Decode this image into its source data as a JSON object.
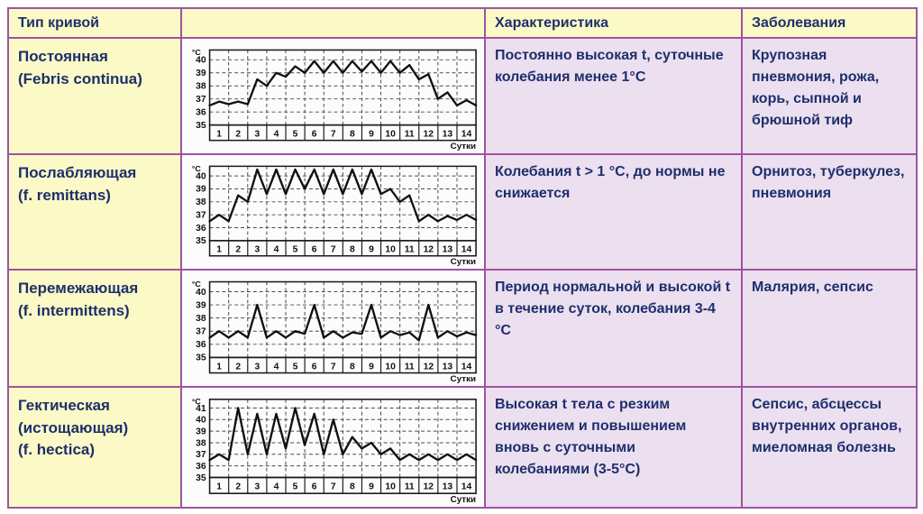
{
  "colors": {
    "border_purple": "#9c55a0",
    "header_bg_yellow": "#fbf9c6",
    "cell_bg_lavender": "#ecdff0",
    "text_navy": "#1d2f6b",
    "chart_bg": "#fcfcfc",
    "chart_ink": "#1a1a1a"
  },
  "table": {
    "headers": [
      {
        "label": "Тип кривой"
      },
      {
        "label": ""
      },
      {
        "label": "Характеристика"
      },
      {
        "label": "Заболевания"
      }
    ],
    "rows": [
      {
        "type": "Постоянная\n(Febris continua)",
        "characteristic": "Постоянно высокая t, суточные колебания менее 1°С",
        "diseases": "Крупозная пневмония, рожа, корь, сыпной и брюшной тиф"
      },
      {
        "type": "Послабляющая\n(f. remittans)",
        "characteristic": "Колебания t > 1 °С, до нормы не снижается",
        "diseases": "Орнитоз, туберкулез, пневмония"
      },
      {
        "type": "Перемежающая\n(f. intermittens)",
        "characteristic": "Период нормальной и высокой t в течение суток, колебания 3-4 °С",
        "diseases": "Малярия, сепсис"
      },
      {
        "type": "Гектическая\n(истощающая)\n(f. hectica)",
        "characteristic": "Высокая t тела с резким снижением и повышением вновь с суточными колебаниями (3-5°С)",
        "diseases": "Сепсис, абсцессы внутренних органов, миеломная болезнь"
      }
    ]
  },
  "chart_data": [
    {
      "type": "line",
      "title": "Постоянная (Febris continua)",
      "xlabel": "Сутки",
      "ylabel": "°C",
      "categories": [
        "1",
        "2",
        "3",
        "4",
        "5",
        "6",
        "7",
        "8",
        "9",
        "10",
        "11",
        "12",
        "13",
        "14"
      ],
      "x_step_days": 0.5,
      "yticks": [
        40,
        39,
        38,
        37,
        36,
        35
      ],
      "ylim": [
        35,
        40.75
      ],
      "grid": "dashed",
      "values": [
        36.5,
        36.8,
        36.6,
        36.8,
        36.6,
        38.5,
        38.0,
        39.0,
        38.7,
        39.5,
        39.0,
        39.9,
        39.0,
        39.9,
        39.0,
        39.9,
        39.1,
        39.9,
        39.0,
        39.9,
        39.0,
        39.6,
        38.5,
        38.9,
        37.0,
        37.5,
        36.5,
        36.9,
        36.5
      ]
    },
    {
      "type": "line",
      "title": "Послабляющая (f. remittans)",
      "xlabel": "Сутки",
      "ylabel": "°C",
      "categories": [
        "1",
        "2",
        "3",
        "4",
        "5",
        "6",
        "7",
        "8",
        "9",
        "10",
        "11",
        "12",
        "13",
        "14"
      ],
      "x_step_days": 0.5,
      "yticks": [
        40,
        39,
        38,
        37,
        36,
        35
      ],
      "ylim": [
        35,
        40.75
      ],
      "grid": "dashed",
      "values": [
        36.5,
        37.0,
        36.5,
        38.5,
        38.0,
        40.5,
        38.6,
        40.5,
        38.6,
        40.5,
        39.0,
        40.5,
        38.6,
        40.5,
        38.6,
        40.5,
        38.6,
        40.5,
        38.6,
        39.0,
        38.0,
        38.5,
        36.5,
        37.0,
        36.5,
        36.9,
        36.6,
        37.0,
        36.6
      ]
    },
    {
      "type": "line",
      "title": "Перемежающая (f. intermittens)",
      "xlabel": "Сутки",
      "ylabel": "°C",
      "categories": [
        "1",
        "2",
        "3",
        "4",
        "5",
        "6",
        "7",
        "8",
        "9",
        "10",
        "11",
        "12",
        "13",
        "14"
      ],
      "x_step_days": 0.5,
      "yticks": [
        40,
        39,
        38,
        37,
        36,
        35
      ],
      "ylim": [
        35,
        40.75
      ],
      "grid": "dashed",
      "values": [
        36.5,
        37.0,
        36.5,
        37.0,
        36.5,
        39.0,
        36.5,
        37.0,
        36.5,
        37.0,
        36.8,
        39.0,
        36.5,
        37.0,
        36.5,
        36.9,
        36.8,
        39.0,
        36.5,
        37.0,
        36.7,
        36.9,
        36.3,
        39.0,
        36.5,
        37.0,
        36.6,
        36.9,
        36.7
      ]
    },
    {
      "type": "line",
      "title": "Гектическая (f. hectica)",
      "xlabel": "Сутки",
      "ylabel": "°C",
      "categories": [
        "1",
        "2",
        "3",
        "4",
        "5",
        "6",
        "7",
        "8",
        "9",
        "10",
        "11",
        "12",
        "13",
        "14"
      ],
      "x_step_days": 0.5,
      "yticks": [
        41,
        40,
        39,
        38,
        37,
        36,
        35
      ],
      "ylim": [
        35,
        41.75
      ],
      "grid": "dashed",
      "values": [
        36.5,
        37.0,
        36.5,
        41.0,
        37.0,
        40.5,
        37.0,
        40.5,
        37.5,
        41.0,
        37.8,
        40.5,
        37.0,
        40.0,
        37.0,
        38.5,
        37.5,
        38.0,
        37.0,
        37.5,
        36.5,
        37.0,
        36.5,
        37.0,
        36.5,
        37.0,
        36.5,
        37.0,
        36.5
      ]
    }
  ]
}
